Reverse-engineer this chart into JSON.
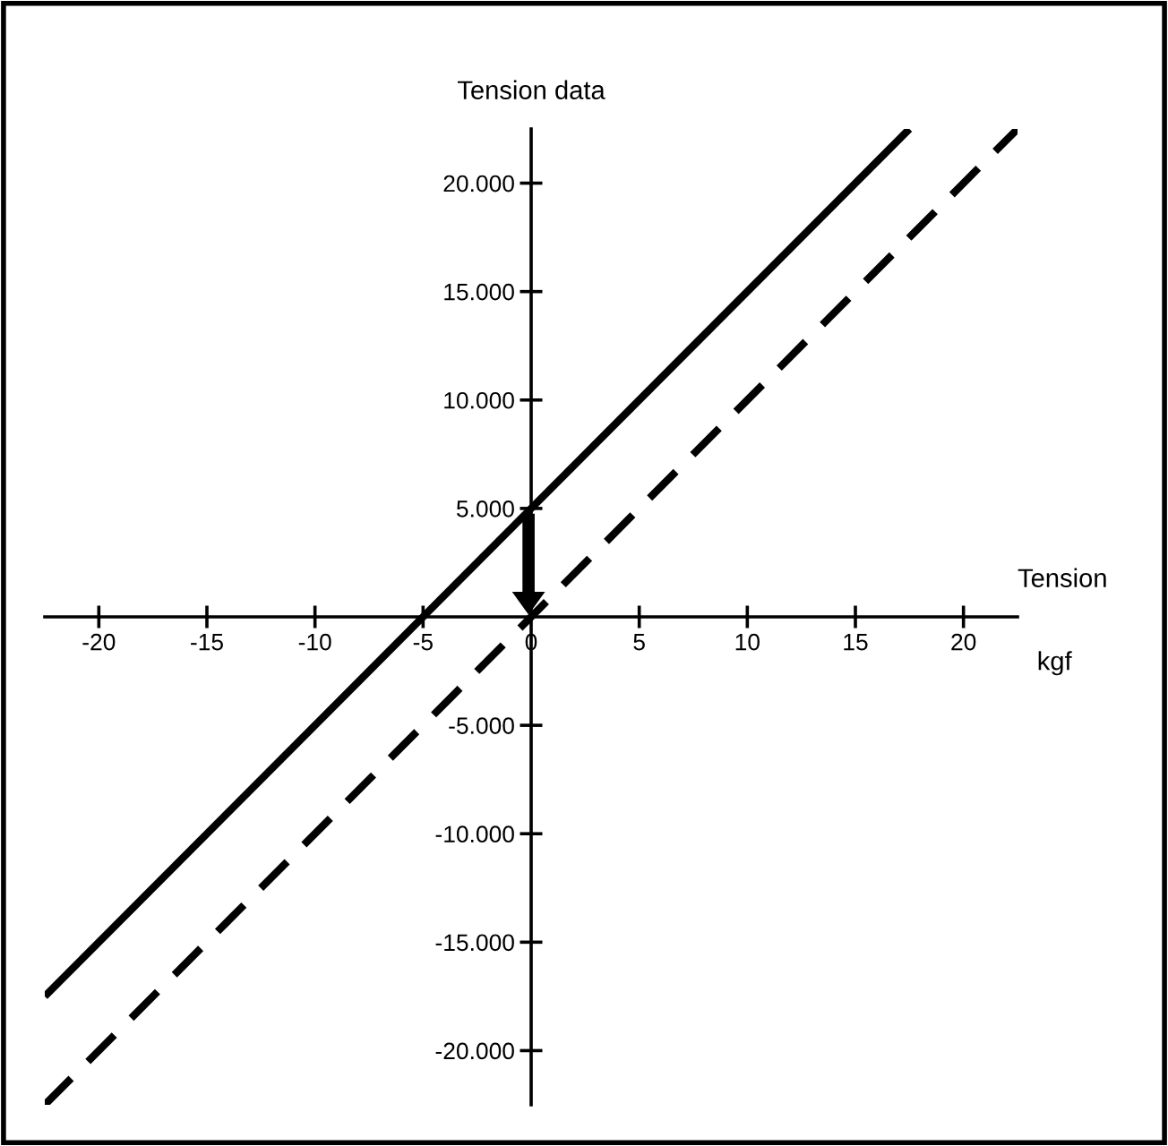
{
  "chart_data": {
    "type": "line",
    "xlabel": "Tension",
    "ylabel": "Tension data",
    "annotations": [
      "kgf"
    ],
    "series": [
      {
        "color": "#000000",
        "line_style": "solid",
        "x": [
          -22.5,
          17.5
        ],
        "values": [
          -17500,
          22500
        ]
      },
      {
        "color": "#000000",
        "line_style": "dashed",
        "x": [
          -22.5,
          22.5
        ],
        "values": [
          -22500,
          22500
        ]
      }
    ],
    "xlim": [
      -22.5,
      22.5
    ],
    "ylim": [
      -22500,
      22500
    ],
    "xticks": [
      -20,
      -15,
      -10,
      -5,
      0,
      5,
      10,
      15,
      20
    ],
    "yticks": [
      {
        "value": -20000,
        "label": "-20.000"
      },
      {
        "value": -15000,
        "label": "-15.000"
      },
      {
        "value": -10000,
        "label": "-10.000"
      },
      {
        "value": -5000,
        "label": "-5.000"
      },
      {
        "value": 5000,
        "label": "5.000"
      },
      {
        "value": 10000,
        "label": "10.000"
      },
      {
        "value": 15000,
        "label": "15.000"
      },
      {
        "value": 20000,
        "label": "20.000"
      }
    ],
    "grid": false,
    "legend": false,
    "marker": "none"
  }
}
